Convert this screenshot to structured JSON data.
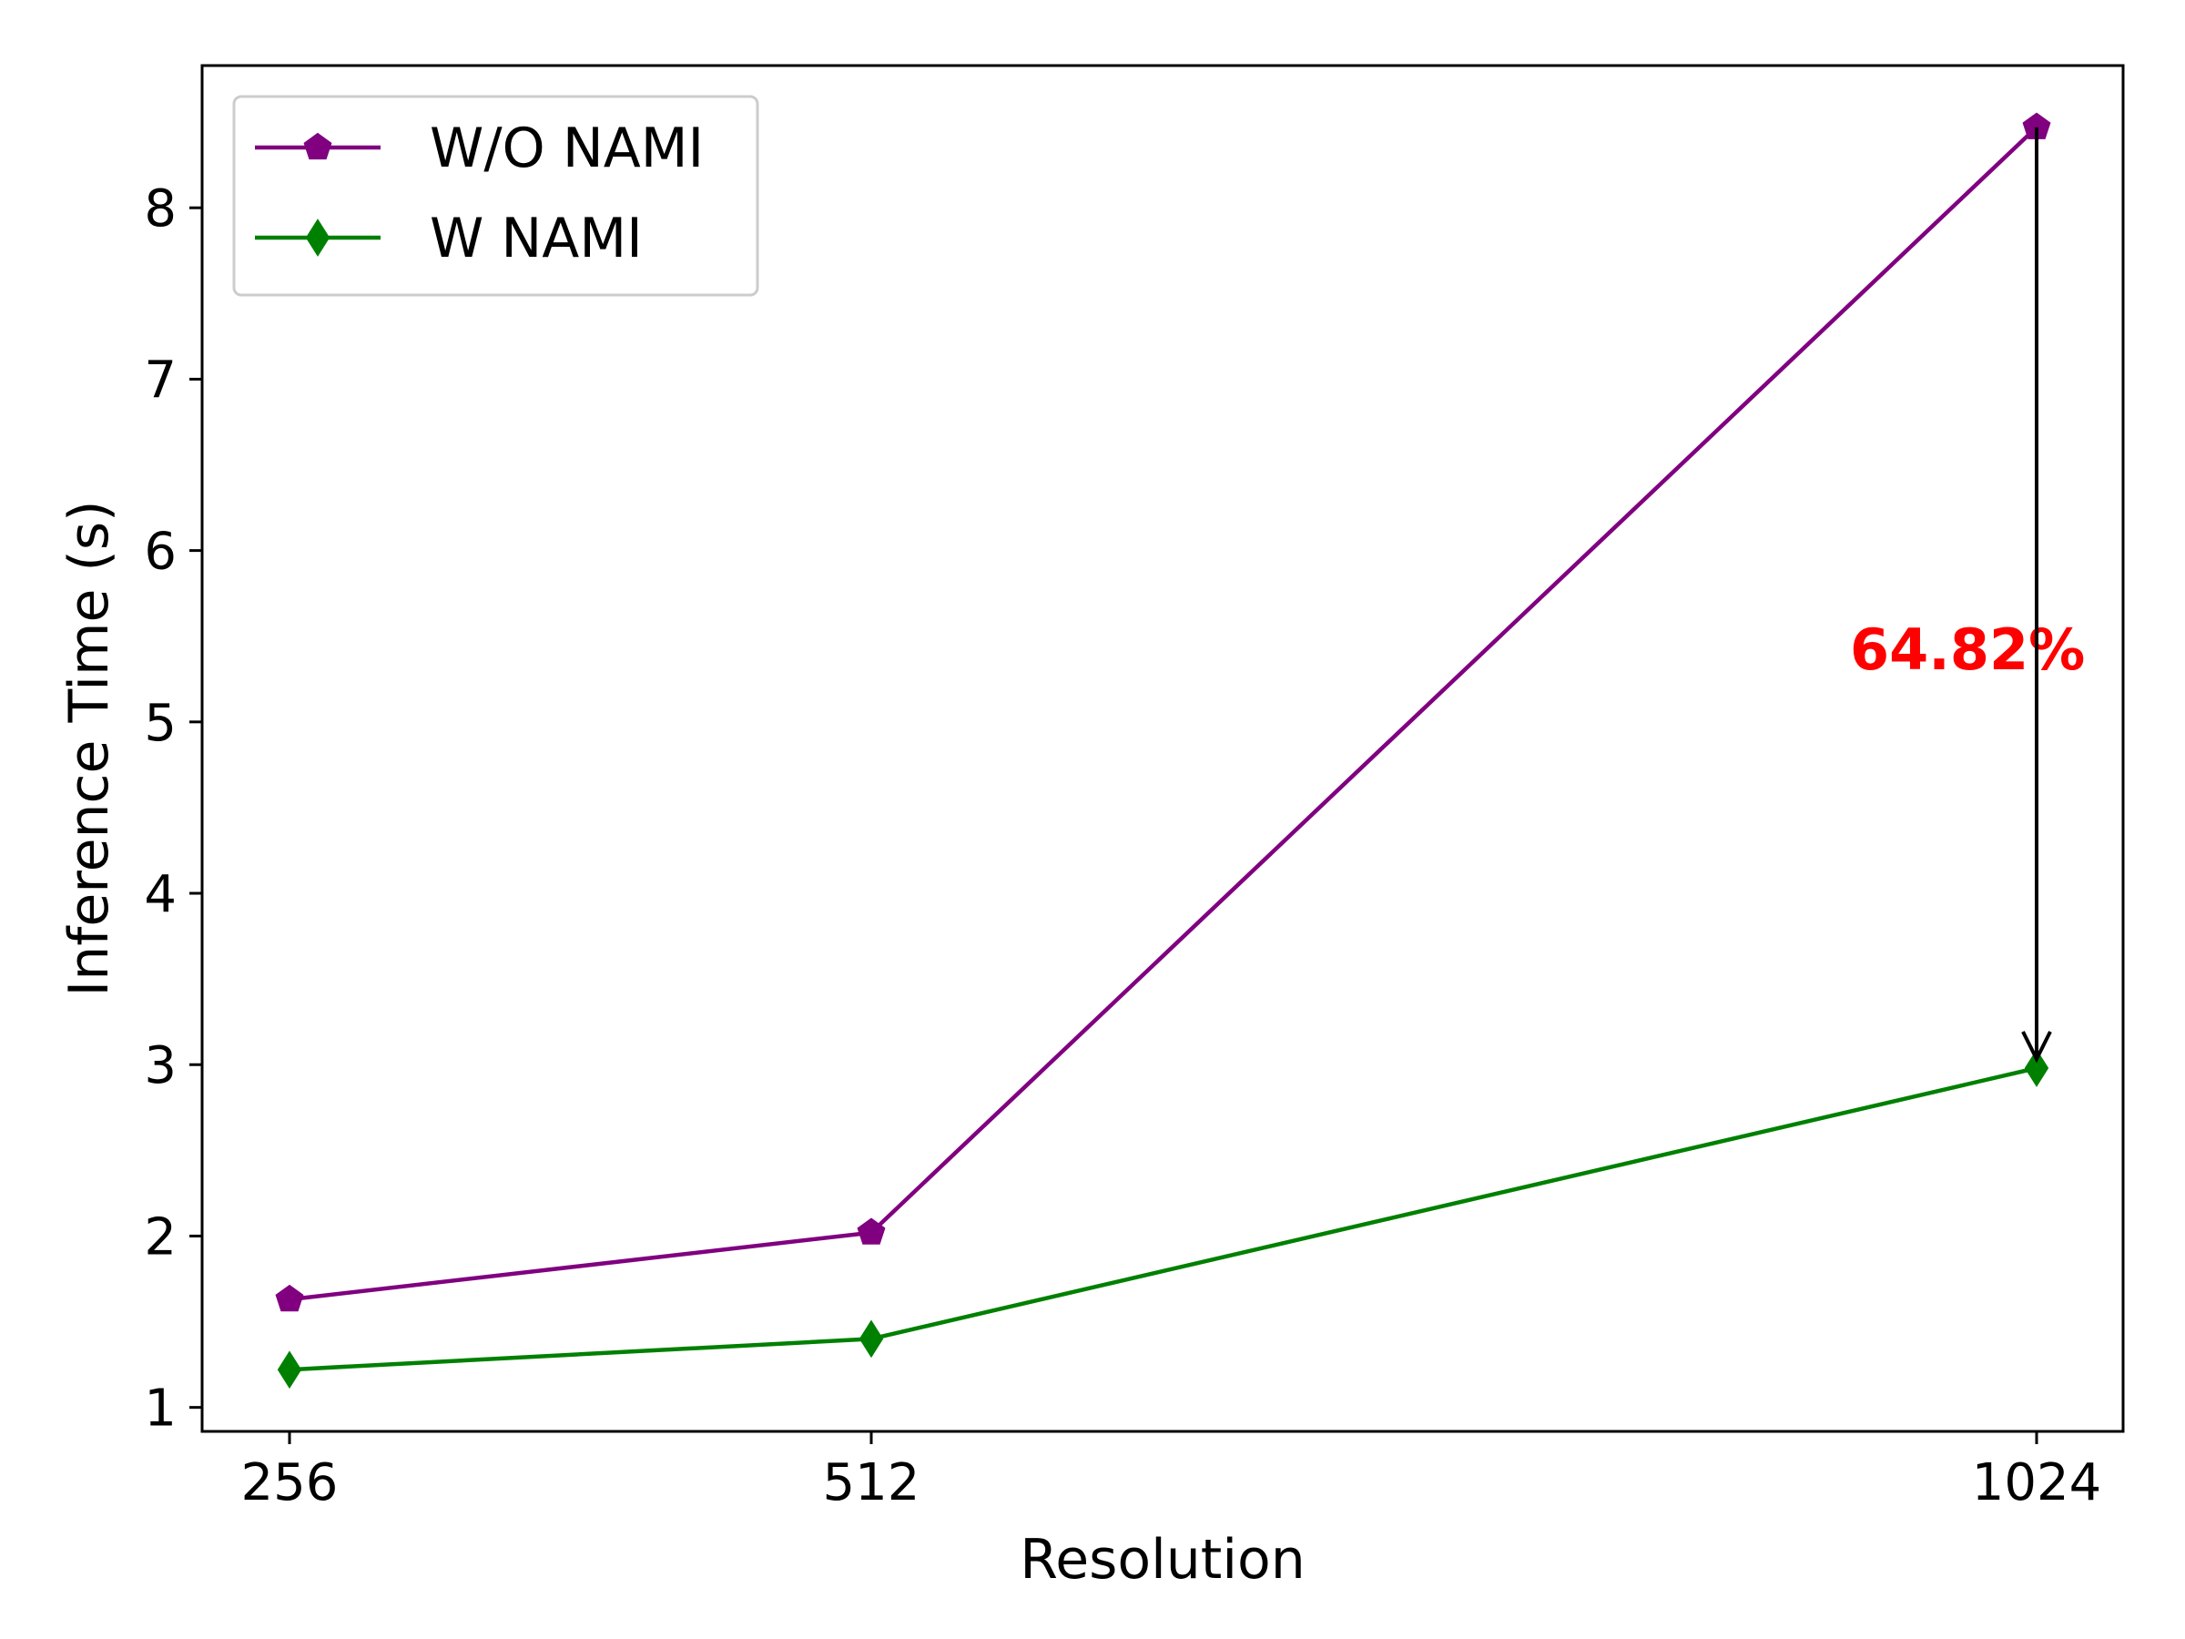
{
  "chart_data": {
    "type": "line",
    "xlabel": "Resolution",
    "ylabel": "Inference Time (s)",
    "x": [
      256,
      512,
      1024
    ],
    "x_tick_labels": [
      "256",
      "512",
      "1024"
    ],
    "y_ticks": [
      1,
      2,
      3,
      4,
      5,
      6,
      7,
      8
    ],
    "y_tick_labels": [
      "1",
      "2",
      "3",
      "4",
      "5",
      "6",
      "7",
      "8"
    ],
    "ylim": [
      0.86,
      8.83
    ],
    "grid": false,
    "legend_position": "upper-left",
    "series": [
      {
        "name": "W/O NAMI",
        "values": [
          1.63,
          2.02,
          8.47
        ],
        "color": "#800080",
        "marker": "pentagon"
      },
      {
        "name": "W NAMI",
        "values": [
          1.22,
          1.4,
          2.98
        ],
        "color": "#008000",
        "marker": "thin-diamond"
      }
    ],
    "annotation": {
      "text": "64.82%",
      "color": "#ff0000",
      "arrow_from": {
        "x": 1024,
        "y": 8.47
      },
      "arrow_to": {
        "x": 1024,
        "y": 2.98
      }
    }
  }
}
